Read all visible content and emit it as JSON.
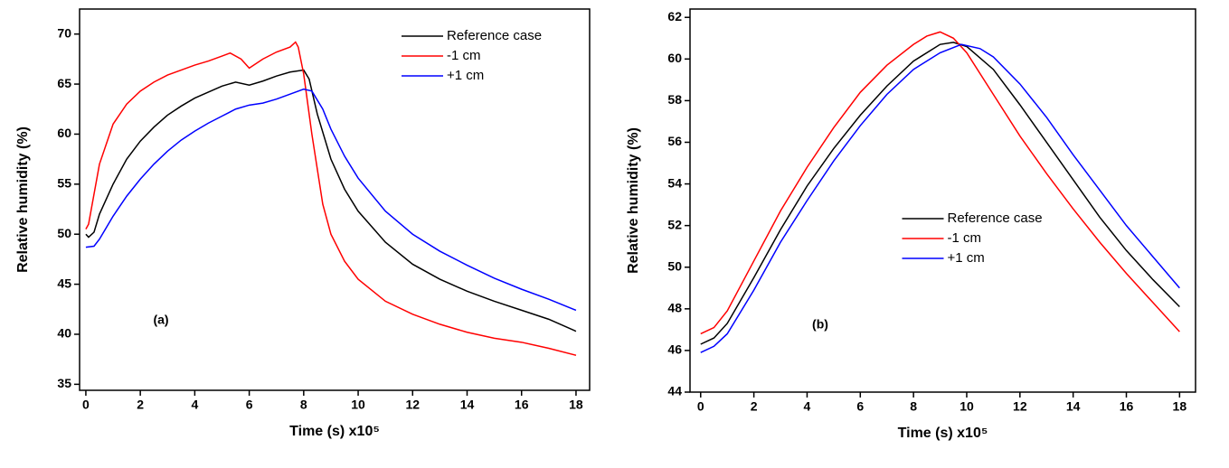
{
  "chart_data": [
    {
      "type": "line",
      "xlabel": "Time (s) x10⁵",
      "ylabel": "Relative humidity (%)",
      "annotation": "(a)",
      "xlim": [
        -0.23,
        18.5
      ],
      "ylim": [
        34.4,
        72.5
      ],
      "xticks": [
        0,
        2,
        4,
        6,
        8,
        10,
        12,
        14,
        16,
        18
      ],
      "yticks": [
        35,
        40,
        45,
        50,
        55,
        60,
        65,
        70
      ],
      "legend": "upper right",
      "series": [
        {
          "name": "Reference case",
          "color": "#000000",
          "x": [
            0,
            0.1,
            0.3,
            0.5,
            1,
            1.5,
            2,
            2.5,
            3,
            3.5,
            4,
            4.5,
            5,
            5.5,
            6,
            6.5,
            7,
            7.5,
            8,
            8.2,
            8.5,
            9,
            9.5,
            10,
            11,
            12,
            13,
            14,
            15,
            16,
            17,
            18
          ],
          "values": [
            50,
            49.7,
            50.2,
            52,
            55,
            57.5,
            59.3,
            60.7,
            61.9,
            62.8,
            63.6,
            64.2,
            64.8,
            65.2,
            64.9,
            65.3,
            65.8,
            66.2,
            66.4,
            65.5,
            62,
            57.5,
            54.5,
            52.3,
            49.2,
            47,
            45.5,
            44.3,
            43.3,
            42.4,
            41.5,
            40.3
          ]
        },
        {
          "name": "-1 cm",
          "color": "#ff0000",
          "x": [
            0,
            0.1,
            0.3,
            0.5,
            1,
            1.5,
            2,
            2.5,
            3,
            3.5,
            4,
            4.5,
            5,
            5.3,
            5.7,
            6,
            6.5,
            7,
            7.5,
            7.7,
            7.8,
            8,
            8.3,
            8.7,
            9,
            9.5,
            10,
            11,
            12,
            13,
            14,
            15,
            16,
            17,
            18
          ],
          "values": [
            50.5,
            51,
            54,
            57,
            61,
            63,
            64.3,
            65.2,
            65.9,
            66.4,
            66.9,
            67.3,
            67.8,
            68.1,
            67.5,
            66.6,
            67.5,
            68.2,
            68.7,
            69.2,
            68.7,
            66,
            60,
            53,
            50,
            47.3,
            45.5,
            43.3,
            42,
            41,
            40.2,
            39.6,
            39.2,
            38.6,
            37.9
          ]
        },
        {
          "name": "+1 cm",
          "color": "#0000ff",
          "x": [
            0,
            0.3,
            0.5,
            1,
            1.5,
            2,
            2.5,
            3,
            3.5,
            4,
            4.5,
            5,
            5.5,
            6,
            6.5,
            7,
            7.5,
            8,
            8.3,
            8.7,
            9,
            9.5,
            10,
            11,
            12,
            13,
            14,
            15,
            16,
            17,
            18
          ],
          "values": [
            48.7,
            48.8,
            49.5,
            51.8,
            53.8,
            55.5,
            57,
            58.3,
            59.4,
            60.3,
            61.1,
            61.8,
            62.5,
            62.9,
            63.1,
            63.5,
            64,
            64.5,
            64.3,
            62.5,
            60.5,
            57.8,
            55.6,
            52.3,
            50,
            48.3,
            46.9,
            45.6,
            44.5,
            43.5,
            42.4
          ]
        }
      ]
    },
    {
      "type": "line",
      "xlabel": "Time (s) x10⁵",
      "ylabel": "Relative humidity (%)",
      "annotation": "(b)",
      "xlim": [
        -0.4,
        18.6
      ],
      "ylim": [
        44,
        62.4
      ],
      "xticks": [
        0,
        2,
        4,
        6,
        8,
        10,
        12,
        14,
        16,
        18
      ],
      "yticks": [
        44,
        46,
        48,
        50,
        52,
        54,
        56,
        58,
        60,
        62
      ],
      "legend": "center",
      "series": [
        {
          "name": "Reference case",
          "color": "#000000",
          "x": [
            0,
            0.5,
            1,
            2,
            3,
            4,
            5,
            6,
            7,
            8,
            9,
            9.5,
            10,
            11,
            12,
            13,
            14,
            15,
            16,
            17,
            18
          ],
          "values": [
            46.3,
            46.6,
            47.3,
            49.5,
            51.8,
            53.9,
            55.7,
            57.3,
            58.7,
            59.9,
            60.7,
            60.8,
            60.6,
            59.5,
            57.8,
            56,
            54.2,
            52.4,
            50.8,
            49.4,
            48.1
          ]
        },
        {
          "name": "-1 cm",
          "color": "#ff0000",
          "x": [
            0,
            0.5,
            1,
            2,
            3,
            4,
            5,
            6,
            7,
            8,
            8.5,
            9,
            9.5,
            10,
            11,
            12,
            13,
            14,
            15,
            16,
            17,
            18
          ],
          "values": [
            46.8,
            47.1,
            47.9,
            50.3,
            52.7,
            54.8,
            56.7,
            58.4,
            59.7,
            60.7,
            61.1,
            61.3,
            61,
            60.3,
            58.3,
            56.3,
            54.5,
            52.8,
            51.2,
            49.7,
            48.3,
            46.9
          ]
        },
        {
          "name": "+1 cm",
          "color": "#0000ff",
          "x": [
            0,
            0.5,
            1,
            2,
            3,
            4,
            5,
            6,
            7,
            8,
            9,
            9.8,
            10.5,
            11,
            12,
            13,
            14,
            15,
            16,
            17,
            18
          ],
          "values": [
            45.9,
            46.2,
            46.8,
            48.9,
            51.2,
            53.2,
            55.1,
            56.8,
            58.3,
            59.5,
            60.3,
            60.7,
            60.5,
            60.1,
            58.8,
            57.2,
            55.4,
            53.7,
            52,
            50.5,
            49
          ]
        }
      ]
    }
  ]
}
